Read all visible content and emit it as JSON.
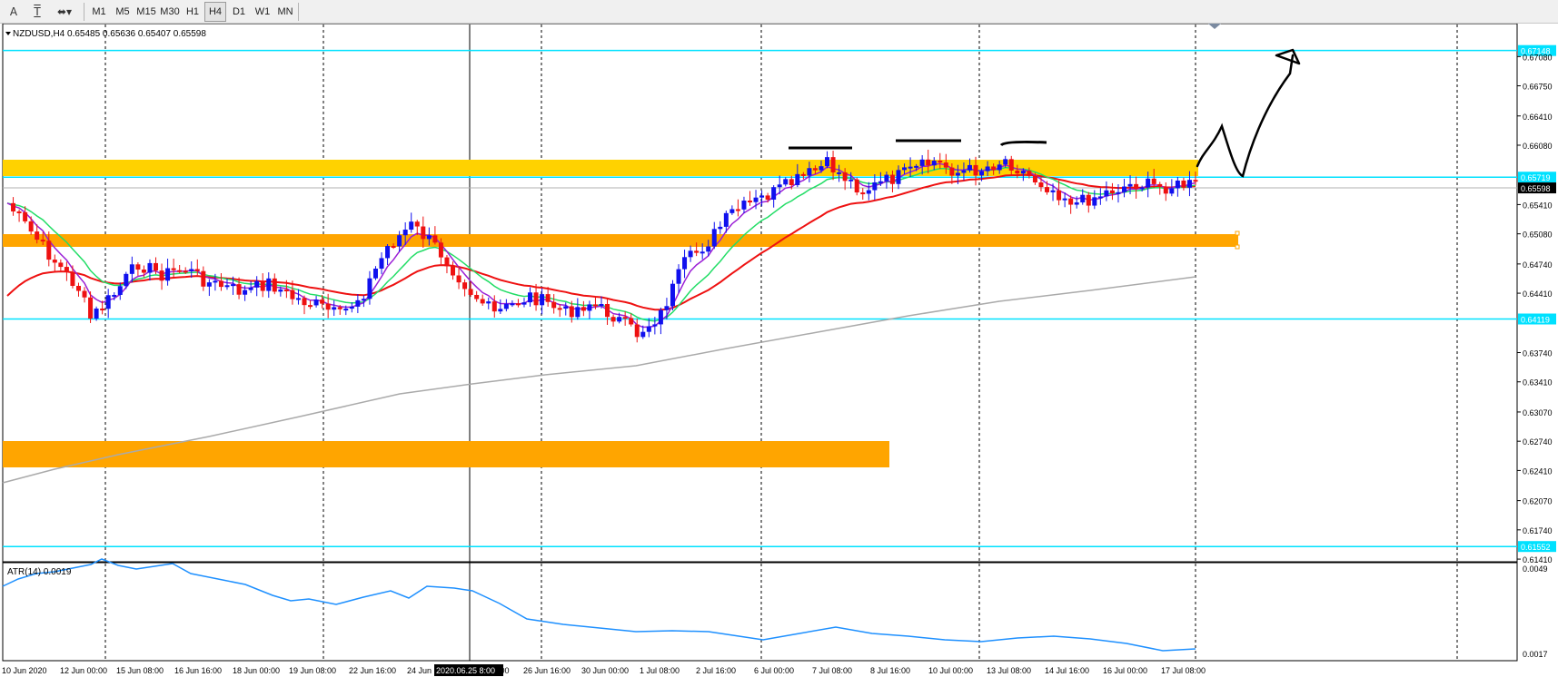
{
  "toolbar": {
    "tools": [
      {
        "name": "text-tool",
        "glyph": "A"
      },
      {
        "name": "text-label-tool",
        "glyph": "T"
      },
      {
        "name": "arrows-tool",
        "glyph": "⬌▾"
      }
    ],
    "timeframes": [
      "M1",
      "M5",
      "M15",
      "M30",
      "H1",
      "H4",
      "D1",
      "W1",
      "MN"
    ],
    "active_timeframe": "H4"
  },
  "chart": {
    "header": "NZDUSD,H4  0.65485 0.65636 0.65407 0.65598",
    "price_ticks": [
      "0.67080",
      "0.66750",
      "0.66410",
      "0.66080",
      "0.65410",
      "0.65080",
      "0.64740",
      "0.64410",
      "0.63740",
      "0.63410",
      "0.63070",
      "0.62740",
      "0.62410",
      "0.62070",
      "0.61740",
      "0.61410"
    ],
    "price_tick_values": [
      0.6708,
      0.6675,
      0.6641,
      0.6608,
      0.6541,
      0.6508,
      0.6474,
      0.6441,
      0.6374,
      0.6341,
      0.6307,
      0.6274,
      0.6241,
      0.6207,
      0.6174,
      0.6141
    ],
    "price_range": [
      0.6138,
      0.6737
    ],
    "current_price_label": "0.65598",
    "current_price": 0.65598,
    "hline_levels": [
      {
        "label": "0.67148",
        "value": 0.67148
      },
      {
        "label": "0.65719",
        "value": 0.65719
      },
      {
        "label": "0.64119",
        "value": 0.64119
      },
      {
        "label": "0.61552",
        "value": 0.61552
      }
    ],
    "time_labels": [
      "10 Jun 2020",
      "12 Jun 00:00",
      "15 Jun 08:00",
      "16 Jun 16:00",
      "18 Jun 00:00",
      "19 Jun 08:00",
      "22 Jun 16:00",
      "24 Jun",
      "2020.06.25 8:00",
      ":00",
      "26 Jun 16:00",
      "30 Jun 00:00",
      "1 Jul 08:00",
      "2 Jul 16:00",
      "6 Jul 00:00",
      "7 Jul 08:00",
      "8 Jul 16:00",
      "10 Jul 00:00",
      "13 Jul 08:00",
      "14 Jul 16:00",
      "16 Jul 00:00",
      "17 Jul 08:00"
    ],
    "crosshair_time": "2020.06.25 8:00",
    "indicator_label": "ATR(14) 0.0019",
    "indicator_ticks": [
      "0.0049",
      "0.0017"
    ]
  },
  "colors": {
    "up": "#1010ee",
    "down": "#ee1111",
    "ma_fast": "#9b1fd6",
    "ma_mid": "#22dd66",
    "ma_slow": "#ee1111",
    "ma_long": "#aaaaaa",
    "hline": "#00e1ff",
    "zone_gold": "#ffd200",
    "zone_orange": "#ffa500",
    "atr": "#1e90ff"
  }
}
